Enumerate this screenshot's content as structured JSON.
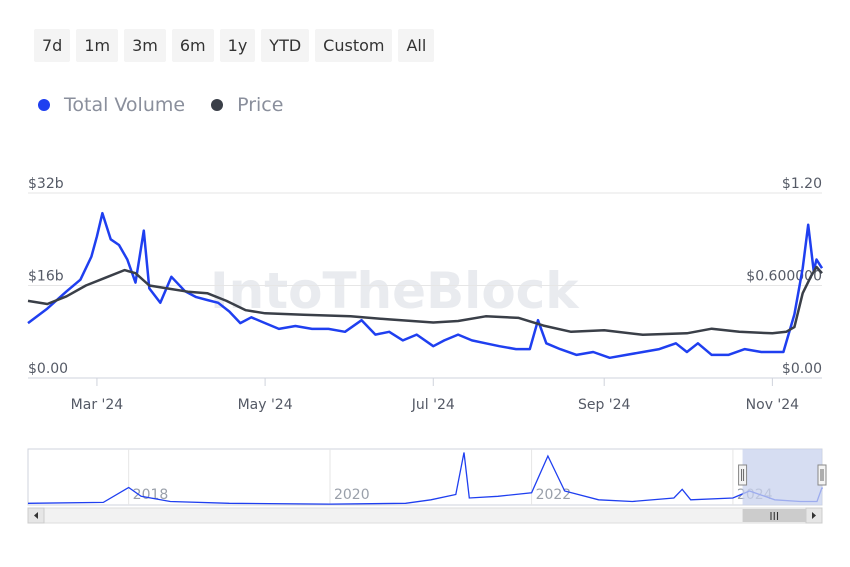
{
  "range_selector": {
    "buttons": [
      "7d",
      "1m",
      "3m",
      "6m",
      "1y",
      "YTD",
      "Custom",
      "All"
    ]
  },
  "legend": [
    {
      "name": "Total Volume",
      "color": "#1f3ff0"
    },
    {
      "name": "Price",
      "color": "#3a3f48"
    }
  ],
  "watermark": "IntoTheBlock",
  "colors": {
    "volume": "#1f3ff0",
    "price": "#3a3f48",
    "grid": "#e6e6e6",
    "navigator_mask": "#c8d2ee"
  },
  "chart_data": {
    "type": "line",
    "x_axis": {
      "ticks": [
        "Mar '24",
        "May '24",
        "Jul '24",
        "Sep '24",
        "Nov '24"
      ],
      "tick_dates": [
        "2024-03-01",
        "2024-05-01",
        "2024-07-01",
        "2024-09-01",
        "2024-11-01"
      ],
      "range": [
        "2024-02-05",
        "2024-11-19"
      ]
    },
    "y_axis_left": {
      "ticks": [
        "$0.00",
        "$16b",
        "$32b"
      ],
      "range": [
        0,
        32
      ],
      "unit": "b USD"
    },
    "y_axis_right": {
      "ticks": [
        "$0.00",
        "$0.600000",
        "$1.20"
      ],
      "range": [
        0,
        1.2
      ],
      "unit": "USD"
    },
    "grid": true,
    "legend_position": "top-left",
    "series": [
      {
        "name": "Total Volume",
        "axis": "left",
        "points": [
          [
            "2024-02-05",
            9.5
          ],
          [
            "2024-02-12",
            12
          ],
          [
            "2024-02-19",
            15
          ],
          [
            "2024-02-24",
            17
          ],
          [
            "2024-02-28",
            21
          ],
          [
            "2024-03-01",
            24.5
          ],
          [
            "2024-03-03",
            28.5
          ],
          [
            "2024-03-06",
            24
          ],
          [
            "2024-03-09",
            23
          ],
          [
            "2024-03-12",
            20.5
          ],
          [
            "2024-03-15",
            16.5
          ],
          [
            "2024-03-18",
            25.5
          ],
          [
            "2024-03-20",
            15.5
          ],
          [
            "2024-03-24",
            13
          ],
          [
            "2024-03-28",
            17.5
          ],
          [
            "2024-04-02",
            15
          ],
          [
            "2024-04-06",
            14
          ],
          [
            "2024-04-10",
            13.5
          ],
          [
            "2024-04-14",
            13
          ],
          [
            "2024-04-18",
            11.5
          ],
          [
            "2024-04-22",
            9.5
          ],
          [
            "2024-04-26",
            10.5
          ],
          [
            "2024-05-01",
            9.5
          ],
          [
            "2024-05-06",
            8.5
          ],
          [
            "2024-05-12",
            9
          ],
          [
            "2024-05-18",
            8.5
          ],
          [
            "2024-05-24",
            8.5
          ],
          [
            "2024-05-30",
            8
          ],
          [
            "2024-06-05",
            10
          ],
          [
            "2024-06-10",
            7.5
          ],
          [
            "2024-06-15",
            8
          ],
          [
            "2024-06-20",
            6.5
          ],
          [
            "2024-06-25",
            7.5
          ],
          [
            "2024-07-01",
            5.5
          ],
          [
            "2024-07-05",
            6.5
          ],
          [
            "2024-07-10",
            7.5
          ],
          [
            "2024-07-15",
            6.5
          ],
          [
            "2024-07-20",
            6
          ],
          [
            "2024-07-25",
            5.5
          ],
          [
            "2024-07-31",
            5
          ],
          [
            "2024-08-05",
            5
          ],
          [
            "2024-08-08",
            10
          ],
          [
            "2024-08-11",
            6
          ],
          [
            "2024-08-16",
            5
          ],
          [
            "2024-08-22",
            4
          ],
          [
            "2024-08-28",
            4.5
          ],
          [
            "2024-09-03",
            3.5
          ],
          [
            "2024-09-09",
            4
          ],
          [
            "2024-09-15",
            4.5
          ],
          [
            "2024-09-21",
            5
          ],
          [
            "2024-09-27",
            6
          ],
          [
            "2024-10-01",
            4.5
          ],
          [
            "2024-10-05",
            6
          ],
          [
            "2024-10-10",
            4
          ],
          [
            "2024-10-16",
            4
          ],
          [
            "2024-10-22",
            5
          ],
          [
            "2024-10-28",
            4.5
          ],
          [
            "2024-11-01",
            4.5
          ],
          [
            "2024-11-05",
            4.5
          ],
          [
            "2024-11-09",
            11
          ],
          [
            "2024-11-12",
            19
          ],
          [
            "2024-11-14",
            26.5
          ],
          [
            "2024-11-16",
            18.5
          ],
          [
            "2024-11-17",
            20.5
          ],
          [
            "2024-11-19",
            19
          ]
        ]
      },
      {
        "name": "Price",
        "axis": "right",
        "points": [
          [
            "2024-02-05",
            0.5
          ],
          [
            "2024-02-12",
            0.48
          ],
          [
            "2024-02-19",
            0.53
          ],
          [
            "2024-02-26",
            0.6
          ],
          [
            "2024-03-04",
            0.65
          ],
          [
            "2024-03-11",
            0.7
          ],
          [
            "2024-03-15",
            0.68
          ],
          [
            "2024-03-20",
            0.6
          ],
          [
            "2024-03-27",
            0.58
          ],
          [
            "2024-04-03",
            0.56
          ],
          [
            "2024-04-10",
            0.55
          ],
          [
            "2024-04-17",
            0.5
          ],
          [
            "2024-04-24",
            0.44
          ],
          [
            "2024-05-01",
            0.42
          ],
          [
            "2024-05-15",
            0.41
          ],
          [
            "2024-06-01",
            0.4
          ],
          [
            "2024-06-15",
            0.38
          ],
          [
            "2024-07-01",
            0.36
          ],
          [
            "2024-07-10",
            0.37
          ],
          [
            "2024-07-20",
            0.4
          ],
          [
            "2024-08-01",
            0.39
          ],
          [
            "2024-08-10",
            0.34
          ],
          [
            "2024-08-20",
            0.3
          ],
          [
            "2024-09-01",
            0.31
          ],
          [
            "2024-09-15",
            0.28
          ],
          [
            "2024-10-01",
            0.29
          ],
          [
            "2024-10-10",
            0.32
          ],
          [
            "2024-10-20",
            0.3
          ],
          [
            "2024-11-01",
            0.29
          ],
          [
            "2024-11-06",
            0.3
          ],
          [
            "2024-11-09",
            0.33
          ],
          [
            "2024-11-12",
            0.55
          ],
          [
            "2024-11-15",
            0.66
          ],
          [
            "2024-11-17",
            0.72
          ],
          [
            "2024-11-19",
            0.68
          ]
        ]
      }
    ]
  },
  "navigator": {
    "ticks": [
      "2018",
      "2020",
      "2022",
      "2024"
    ],
    "range": [
      "2017-01-01",
      "2024-11-19"
    ],
    "tick_dates": [
      "2018-01-01",
      "2020-01-01",
      "2022-01-01",
      "2024-01-01"
    ],
    "selection": [
      "2024-02-05",
      "2024-11-19"
    ],
    "series": [
      [
        "2017-01-01",
        1
      ],
      [
        "2017-10-01",
        1.5
      ],
      [
        "2018-01-01",
        10
      ],
      [
        "2018-02-15",
        5
      ],
      [
        "2018-06-01",
        2
      ],
      [
        "2019-01-01",
        1
      ],
      [
        "2020-01-01",
        0.5
      ],
      [
        "2020-10-01",
        1
      ],
      [
        "2021-01-01",
        3
      ],
      [
        "2021-04-01",
        6
      ],
      [
        "2021-05-01",
        30
      ],
      [
        "2021-05-20",
        4
      ],
      [
        "2021-09-01",
        5
      ],
      [
        "2022-01-01",
        7
      ],
      [
        "2022-03-01",
        28
      ],
      [
        "2022-05-01",
        8
      ],
      [
        "2022-09-01",
        3
      ],
      [
        "2023-01-01",
        2
      ],
      [
        "2023-06-01",
        4
      ],
      [
        "2023-07-01",
        9
      ],
      [
        "2023-08-01",
        3
      ],
      [
        "2024-01-01",
        4
      ],
      [
        "2024-03-01",
        8
      ],
      [
        "2024-06-01",
        3
      ],
      [
        "2024-09-01",
        2
      ],
      [
        "2024-11-01",
        2
      ],
      [
        "2024-11-19",
        10
      ]
    ],
    "scroll_grip": "III"
  }
}
